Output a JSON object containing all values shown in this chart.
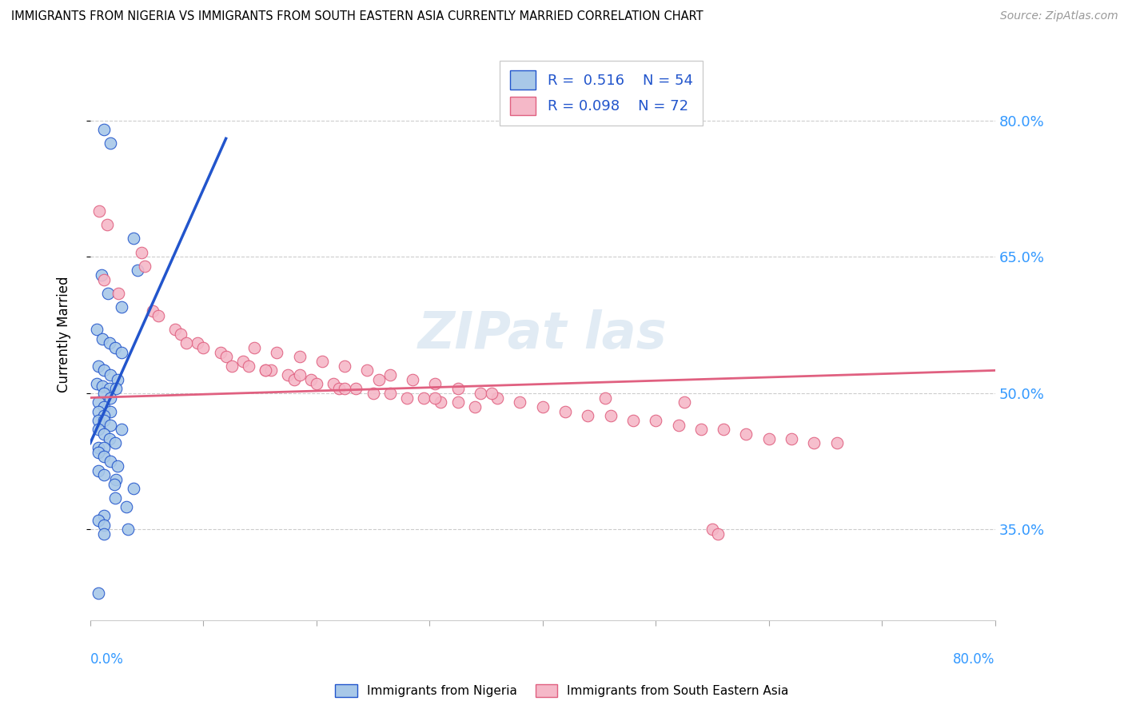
{
  "title": "IMMIGRANTS FROM NIGERIA VS IMMIGRANTS FROM SOUTH EASTERN ASIA CURRENTLY MARRIED CORRELATION CHART",
  "source": "Source: ZipAtlas.com",
  "ylabel": "Currently Married",
  "xmin": 0.0,
  "xmax": 80.0,
  "ymin": 25.0,
  "ymax": 88.0,
  "yticks": [
    35.0,
    50.0,
    65.0,
    80.0
  ],
  "ytick_labels": [
    "35.0%",
    "50.0%",
    "65.0%",
    "80.0%"
  ],
  "color_nigeria": "#a8c8e8",
  "color_sea": "#f5b8c8",
  "color_nigeria_line": "#2255cc",
  "color_sea_line": "#e06080",
  "nigeria_x": [
    1.2,
    1.8,
    3.8,
    4.2,
    1.0,
    1.6,
    2.8,
    0.6,
    1.1,
    1.7,
    2.2,
    2.8,
    0.7,
    1.2,
    1.8,
    2.4,
    0.6,
    1.1,
    1.7,
    2.3,
    1.2,
    1.8,
    0.7,
    1.2,
    1.8,
    0.7,
    1.2,
    0.7,
    1.2,
    1.8,
    2.8,
    0.7,
    1.2,
    1.7,
    2.2,
    0.7,
    1.2,
    0.7,
    1.2,
    1.8,
    2.4,
    0.7,
    1.2,
    2.3,
    2.1,
    3.8,
    2.2,
    3.2,
    1.2,
    0.7,
    1.2,
    3.3,
    0.7,
    1.2
  ],
  "nigeria_y": [
    79.0,
    77.5,
    67.0,
    63.5,
    63.0,
    61.0,
    59.5,
    57.0,
    56.0,
    55.5,
    55.0,
    54.5,
    53.0,
    52.5,
    52.0,
    51.5,
    51.0,
    50.8,
    50.5,
    50.5,
    50.0,
    49.5,
    49.0,
    48.5,
    48.0,
    48.0,
    47.5,
    47.0,
    47.0,
    46.5,
    46.0,
    46.0,
    45.5,
    45.0,
    44.5,
    44.0,
    44.0,
    43.5,
    43.0,
    42.5,
    42.0,
    41.5,
    41.0,
    40.5,
    40.0,
    39.5,
    38.5,
    37.5,
    36.5,
    36.0,
    35.5,
    35.0,
    28.0,
    34.5
  ],
  "sea_x": [
    0.8,
    1.5,
    4.5,
    4.8,
    1.2,
    2.5,
    5.5,
    6.0,
    7.5,
    8.0,
    9.5,
    10.0,
    11.5,
    12.0,
    13.5,
    14.0,
    15.5,
    16.0,
    17.5,
    18.0,
    19.5,
    20.0,
    21.5,
    22.0,
    23.5,
    25.0,
    26.5,
    28.0,
    29.5,
    31.0,
    32.5,
    34.0,
    14.5,
    16.5,
    18.5,
    20.5,
    22.5,
    24.5,
    26.5,
    28.5,
    30.5,
    32.5,
    34.5,
    36.0,
    38.0,
    40.0,
    42.0,
    44.0,
    46.0,
    48.0,
    50.0,
    52.0,
    54.0,
    56.0,
    58.0,
    60.0,
    62.0,
    64.0,
    66.0,
    55.0,
    55.5,
    12.5,
    18.5,
    25.5,
    35.5,
    45.5,
    52.5,
    8.5,
    15.5,
    22.5,
    30.5
  ],
  "sea_y": [
    70.0,
    68.5,
    65.5,
    64.0,
    62.5,
    61.0,
    59.0,
    58.5,
    57.0,
    56.5,
    55.5,
    55.0,
    54.5,
    54.0,
    53.5,
    53.0,
    52.5,
    52.5,
    52.0,
    51.5,
    51.5,
    51.0,
    51.0,
    50.5,
    50.5,
    50.0,
    50.0,
    49.5,
    49.5,
    49.0,
    49.0,
    48.5,
    55.0,
    54.5,
    54.0,
    53.5,
    53.0,
    52.5,
    52.0,
    51.5,
    51.0,
    50.5,
    50.0,
    49.5,
    49.0,
    48.5,
    48.0,
    47.5,
    47.5,
    47.0,
    47.0,
    46.5,
    46.0,
    46.0,
    45.5,
    45.0,
    45.0,
    44.5,
    44.5,
    35.0,
    34.5,
    53.0,
    52.0,
    51.5,
    50.0,
    49.5,
    49.0,
    55.5,
    52.5,
    50.5,
    49.5
  ],
  "nigeria_trend_x0": 0.0,
  "nigeria_trend_y0": 44.5,
  "nigeria_trend_x1": 12.0,
  "nigeria_trend_y1": 78.0,
  "sea_trend_x0": 0.0,
  "sea_trend_y0": 49.5,
  "sea_trend_x1": 80.0,
  "sea_trend_y1": 52.5
}
